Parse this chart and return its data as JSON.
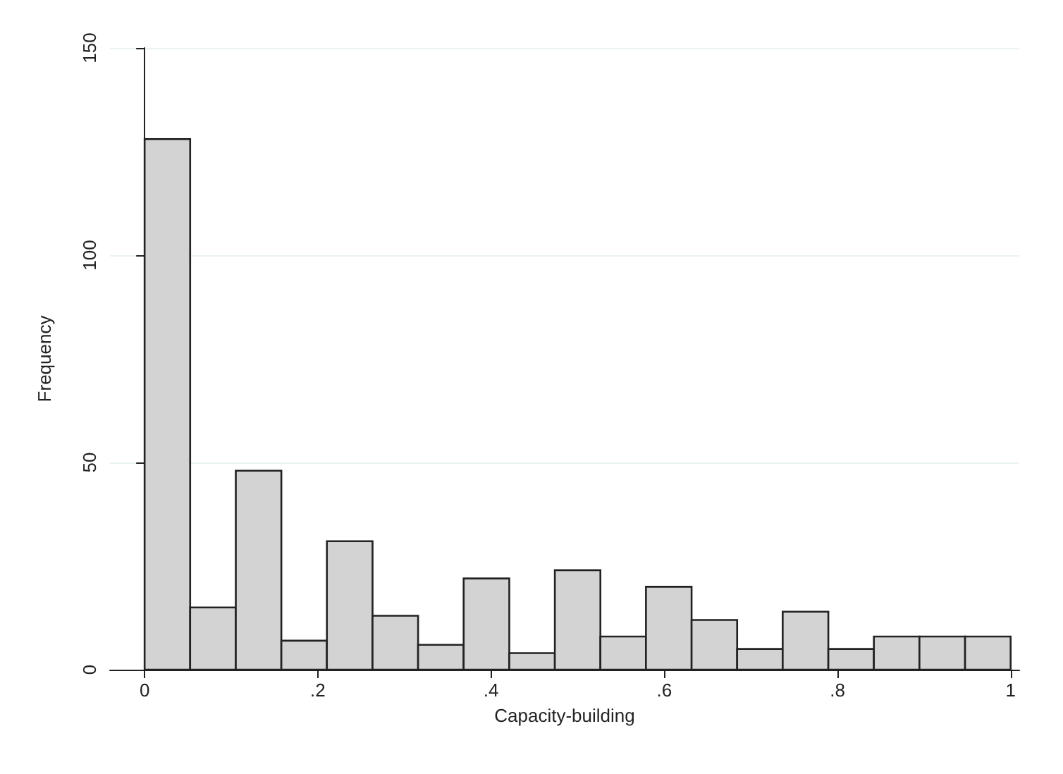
{
  "chart_data": {
    "type": "histogram",
    "xlabel": "Capacity-building",
    "ylabel": "Frequency",
    "bins": [
      0,
      0.0526,
      0.1053,
      0.1579,
      0.2105,
      0.2632,
      0.3158,
      0.3684,
      0.4211,
      0.4737,
      0.5263,
      0.5789,
      0.6316,
      0.6842,
      0.7368,
      0.7895,
      0.8421,
      0.8947,
      0.9474,
      1
    ],
    "values": [
      128,
      15,
      48,
      7,
      31,
      13,
      6,
      22,
      4,
      24,
      8,
      20,
      12,
      5,
      14,
      5,
      8,
      8,
      8
    ],
    "color": "#d3d3d3",
    "xlim": [
      -0.04,
      1.01
    ],
    "xticks": [
      0,
      {
        "value": 0.2,
        "label": ".2"
      },
      {
        "value": 0.4,
        "label": ".4"
      },
      {
        "value": 0.6,
        "label": ".6"
      },
      {
        "value": 0.8,
        "label": ".8"
      },
      1
    ],
    "ylim": [
      0,
      150
    ],
    "yticks": [
      0,
      50,
      100,
      150
    ],
    "grid": "y"
  }
}
